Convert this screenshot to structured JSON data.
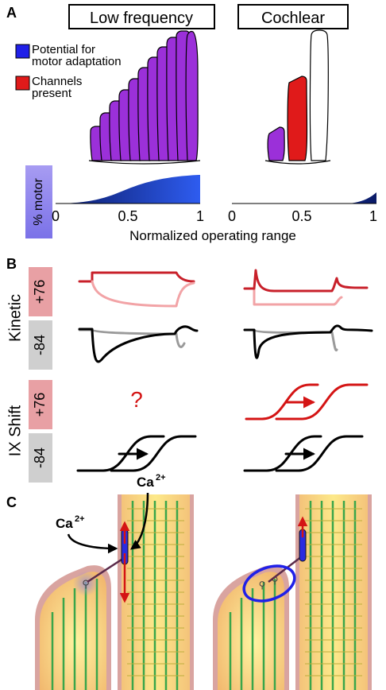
{
  "panel_a": {
    "letter": "A",
    "box_low": "Low frequency",
    "box_cochlear": "Cochlear",
    "legend_motor": [
      "Potential for",
      "motor adaptation"
    ],
    "legend_channels": [
      "Channels",
      "present"
    ],
    "ylabel": "% motor",
    "ticks_left": [
      "0",
      "0.5",
      "1"
    ],
    "ticks_right": [
      "0",
      "0.5",
      "1"
    ],
    "xlabel": "Normalized operating range",
    "colors": {
      "purple": "#9b30d9",
      "red": "#e01a1a",
      "blue": "#2e5cf0",
      "navy": "#0a1a66"
    }
  },
  "panel_b": {
    "letter": "B",
    "row_kinetic": "Kinetic",
    "row_ixshift": "IX Shift",
    "v_pos": "+76",
    "v_neg": "-84",
    "question": "?"
  },
  "panel_c": {
    "letter": "C",
    "ca_label_1": "Ca",
    "ca_sup_1": "2+",
    "ca_label_2": "Ca",
    "ca_sup_2": "2+"
  }
}
